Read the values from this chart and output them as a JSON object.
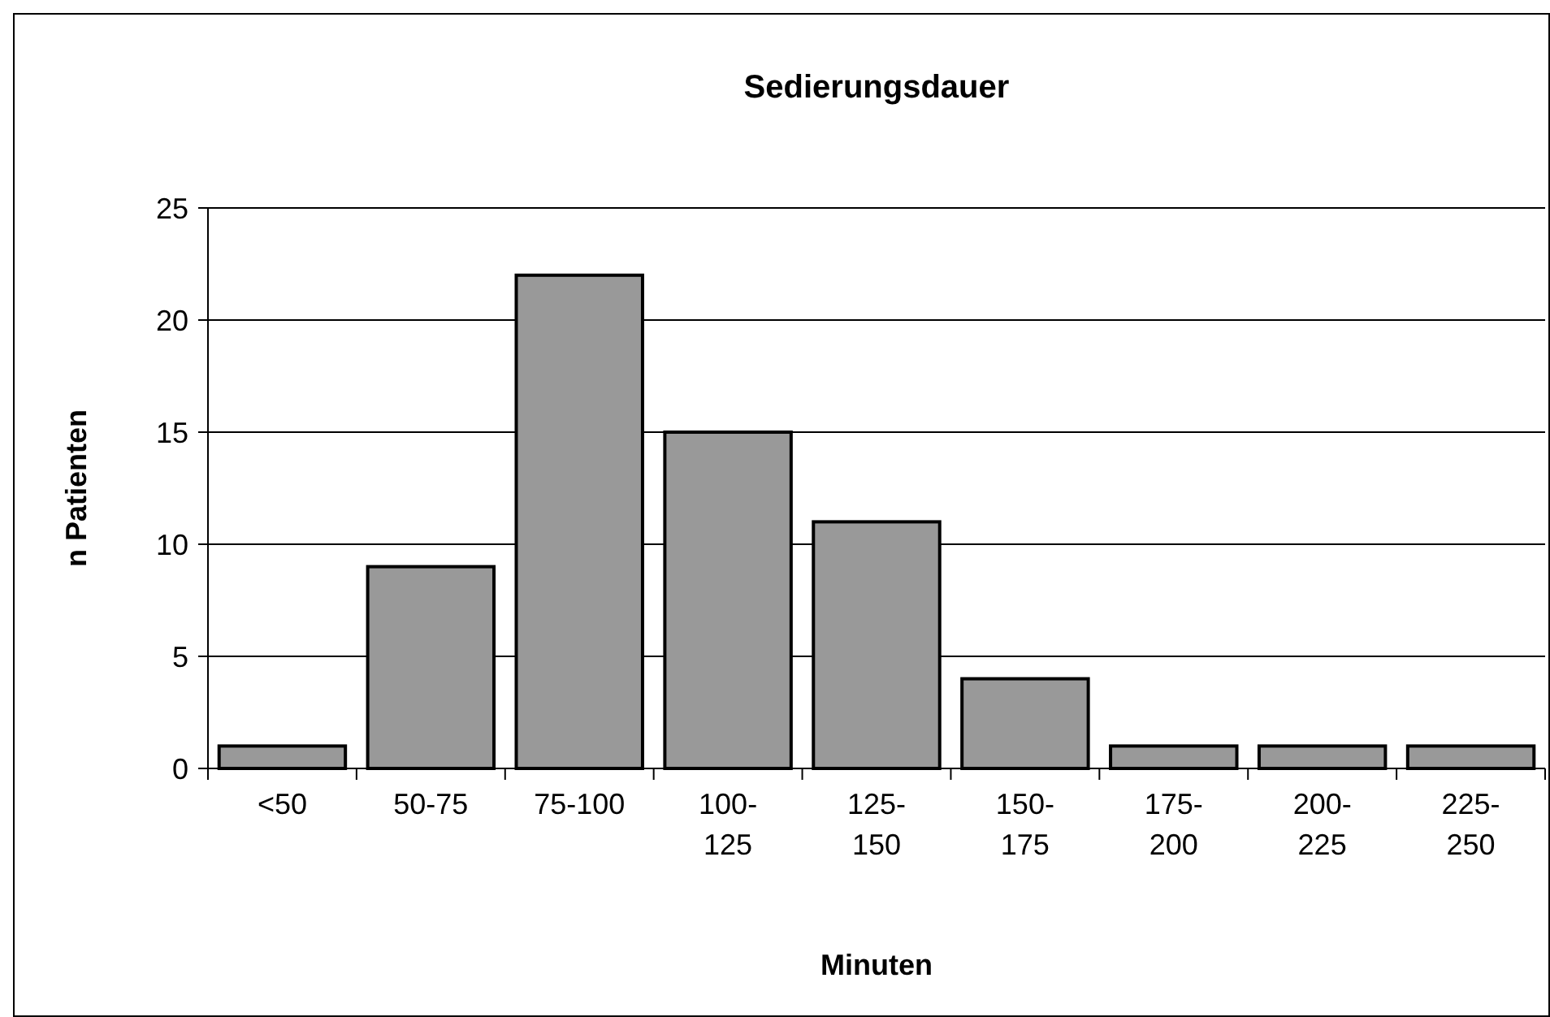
{
  "chart_data": {
    "type": "bar",
    "title": "Sedierungsdauer",
    "xlabel": "Minuten",
    "ylabel": "n Patienten",
    "categories": [
      "<50",
      "50-75",
      "75-100",
      "100-125",
      "125-150",
      "150-175",
      "175-200",
      "200-225",
      "225-250"
    ],
    "values": [
      1,
      9,
      22,
      15,
      11,
      4,
      1,
      1,
      1
    ],
    "color": "#999999",
    "ylim": [
      0,
      25
    ],
    "yticks": [
      0,
      5,
      10,
      15,
      20,
      25
    ],
    "grid": "y"
  }
}
